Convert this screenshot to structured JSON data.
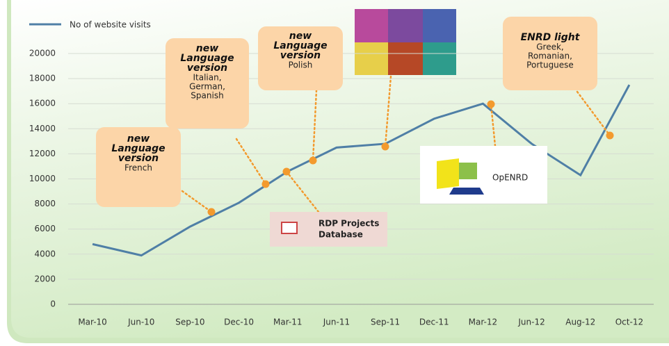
{
  "chart_data": {
    "type": "line",
    "categories": [
      "Mar-10",
      "Jun-10",
      "Sep-10",
      "Dec-10",
      "Mar-11",
      "Jun-11",
      "Sep-11",
      "Dec-11",
      "Mar-12",
      "Jun-12",
      "Aug-12",
      "Oct-12"
    ],
    "series": [
      {
        "name": "No of website visits",
        "color": "#4f7fa6",
        "values": [
          4800,
          3900,
          6200,
          8100,
          10600,
          12500,
          12800,
          14800,
          16000,
          12800,
          10300,
          17500
        ]
      }
    ],
    "ylim": [
      0,
      20000
    ],
    "yticks": [
      0,
      2000,
      4000,
      6000,
      8000,
      10000,
      12000,
      14000,
      16000,
      18000,
      20000
    ],
    "grid": true,
    "annotations": [
      {
        "heading": [
          "new",
          "Language",
          "version"
        ],
        "text": [
          "French"
        ]
      },
      {
        "heading": [
          "new",
          "Language",
          "version"
        ],
        "text": [
          "Italian,",
          "German,",
          "Spanish"
        ]
      },
      {
        "heading": [
          "new",
          "Language",
          "version"
        ],
        "text": [
          "Polish"
        ]
      },
      {
        "heading": [
          "ENRD light"
        ],
        "text": [
          "Greek,",
          "Romanian,",
          "Portuguese"
        ]
      }
    ],
    "images": [
      {
        "text": [
          "RDP Projects",
          "Database"
        ]
      },
      {
        "text": [
          "OpENRD"
        ]
      }
    ]
  }
}
